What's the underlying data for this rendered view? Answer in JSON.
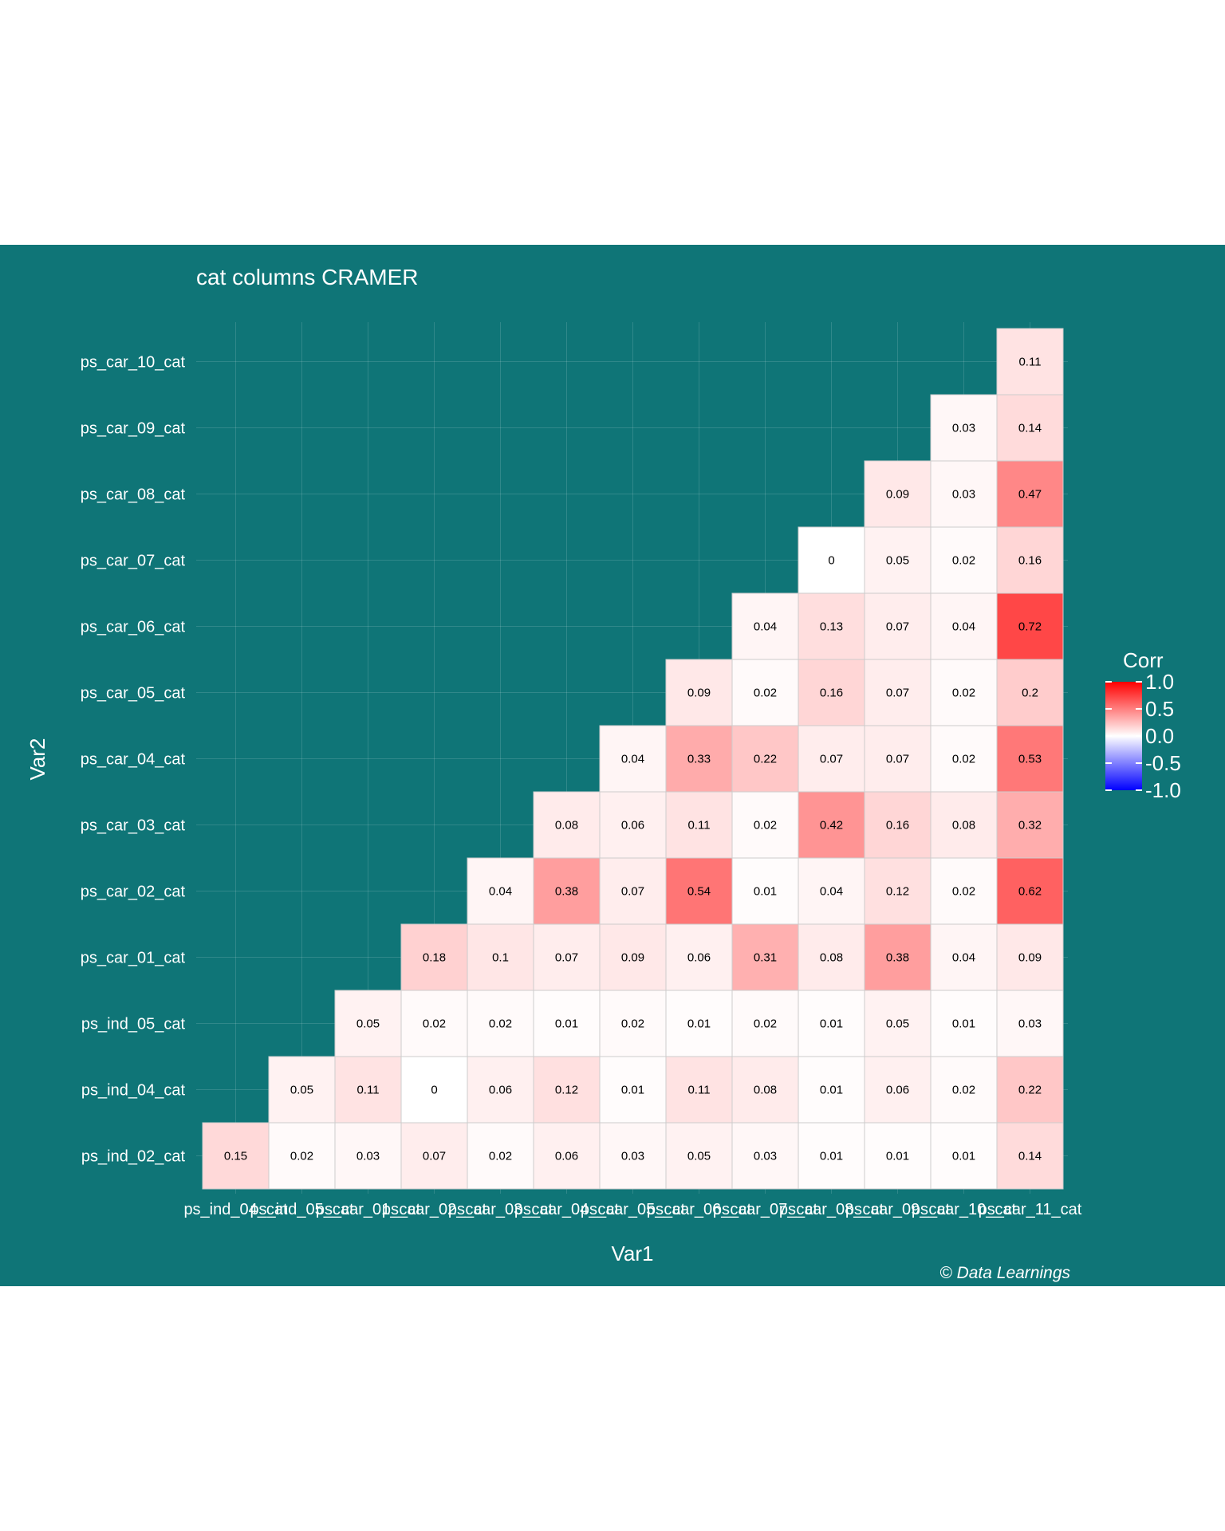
{
  "chart_data": {
    "type": "heatmap",
    "title": "cat columns CRAMER",
    "xlabel": "Var1",
    "ylabel": "Var2",
    "caption": "© Data Learnings",
    "x_categories": [
      "ps_ind_04_cat",
      "ps_ind_05_cat",
      "ps_car_01_cat",
      "ps_car_02_cat",
      "ps_car_03_cat",
      "ps_car_04_cat",
      "ps_car_05_cat",
      "ps_car_06_cat",
      "ps_car_07_cat",
      "ps_car_08_cat",
      "ps_car_09_cat",
      "ps_car_10_cat",
      "ps_car_11_cat"
    ],
    "y_categories": [
      "ps_ind_02_cat",
      "ps_ind_04_cat",
      "ps_ind_05_cat",
      "ps_car_01_cat",
      "ps_car_02_cat",
      "ps_car_03_cat",
      "ps_car_04_cat",
      "ps_car_05_cat",
      "ps_car_06_cat",
      "ps_car_07_cat",
      "ps_car_08_cat",
      "ps_car_09_cat",
      "ps_car_10_cat"
    ],
    "values": [
      [
        0.15,
        0.02,
        0.03,
        0.07,
        0.02,
        0.06,
        0.03,
        0.05,
        0.03,
        0.01,
        0.01,
        0.01,
        0.14
      ],
      [
        null,
        0.05,
        0.11,
        0,
        0.06,
        0.12,
        0.01,
        0.11,
        0.08,
        0.01,
        0.06,
        0.02,
        0.22
      ],
      [
        null,
        null,
        0.05,
        0.02,
        0.02,
        0.01,
        0.02,
        0.01,
        0.02,
        0.01,
        0.05,
        0.01,
        0.03
      ],
      [
        null,
        null,
        null,
        0.18,
        0.1,
        0.07,
        0.09,
        0.06,
        0.31,
        0.08,
        0.38,
        0.04,
        0.09
      ],
      [
        null,
        null,
        null,
        null,
        0.04,
        0.38,
        0.07,
        0.54,
        0.01,
        0.04,
        0.12,
        0.02,
        0.62
      ],
      [
        null,
        null,
        null,
        null,
        null,
        0.08,
        0.06,
        0.11,
        0.02,
        0.42,
        0.16,
        0.08,
        0.32
      ],
      [
        null,
        null,
        null,
        null,
        null,
        null,
        0.04,
        0.33,
        0.22,
        0.07,
        0.07,
        0.02,
        0.53
      ],
      [
        null,
        null,
        null,
        null,
        null,
        null,
        null,
        0.09,
        0.02,
        0.16,
        0.07,
        0.02,
        0.2
      ],
      [
        null,
        null,
        null,
        null,
        null,
        null,
        null,
        null,
        0.04,
        0.13,
        0.07,
        0.04,
        0.72
      ],
      [
        null,
        null,
        null,
        null,
        null,
        null,
        null,
        null,
        null,
        0,
        0.05,
        0.02,
        0.16
      ],
      [
        null,
        null,
        null,
        null,
        null,
        null,
        null,
        null,
        null,
        null,
        0.09,
        0.03,
        0.47
      ],
      [
        null,
        null,
        null,
        null,
        null,
        null,
        null,
        null,
        null,
        null,
        null,
        0.03,
        0.14
      ],
      [
        null,
        null,
        null,
        null,
        null,
        null,
        null,
        null,
        null,
        null,
        null,
        null,
        0.11
      ]
    ],
    "legend": {
      "title": "Corr",
      "ticks": [
        "1.0",
        "0.5",
        "0.0",
        "-0.5",
        "-1.0"
      ],
      "tick_values": [
        1.0,
        0.5,
        0.0,
        -0.5,
        -1.0
      ],
      "range": [
        -1,
        1
      ],
      "placement": "right"
    },
    "colors": {
      "background": "#0f7577",
      "low": "#0000ff",
      "mid": "#ffffff",
      "high": "#ff0000",
      "cell_border": "#cccccc"
    },
    "grid": true
  }
}
